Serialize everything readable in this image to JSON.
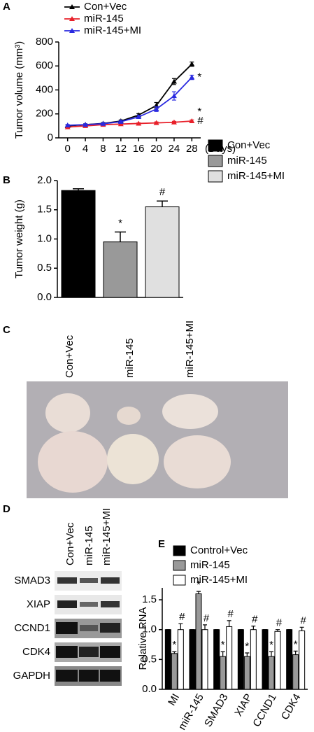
{
  "chart_data": [
    {
      "panel": "A",
      "type": "line",
      "y_label": "Tumor volume (mm³)",
      "x_label": "(Days)",
      "x": [
        0,
        4,
        8,
        12,
        16,
        20,
        24,
        28
      ],
      "xlim": [
        -2,
        30
      ],
      "xticks": [
        0,
        4,
        8,
        12,
        16,
        20,
        24,
        28
      ],
      "ylim": [
        0,
        800
      ],
      "yticks": [
        0,
        200,
        400,
        600,
        800
      ],
      "series": [
        {
          "name": "Con+Vec",
          "color": "#000000",
          "values": [
            100,
            110,
            120,
            140,
            190,
            270,
            470,
            615
          ],
          "errors": [
            8,
            8,
            8,
            10,
            12,
            25,
            25,
            18
          ]
        },
        {
          "name": "miR-145",
          "color": "#e8202a",
          "values": [
            90,
            100,
            110,
            115,
            120,
            125,
            130,
            140
          ],
          "errors": [
            5,
            5,
            5,
            5,
            6,
            8,
            8,
            10
          ]
        },
        {
          "name": "miR-145+MI",
          "color": "#2a2ae0",
          "values": [
            105,
            110,
            118,
            135,
            175,
            240,
            350,
            505
          ],
          "errors": [
            6,
            6,
            6,
            8,
            12,
            20,
            35,
            18
          ]
        }
      ],
      "annotations": [
        {
          "text": "*",
          "x": 28,
          "y": 505
        },
        {
          "text": "*",
          "x": 28,
          "y": 215
        },
        {
          "text": "#",
          "x": 28,
          "y": 140
        }
      ]
    },
    {
      "panel": "B",
      "type": "bar",
      "y_label": "Tumor weight (g)",
      "categories": [
        "Con+Vec",
        "miR-145",
        "miR-145+MI"
      ],
      "values": [
        1.83,
        0.95,
        1.55
      ],
      "errors": [
        0.03,
        0.17,
        0.1
      ],
      "colors": [
        "#000000",
        "#999999",
        "#e0e0e0"
      ],
      "annotations": [
        null,
        "*",
        "#"
      ],
      "ylim": [
        0,
        2
      ],
      "yticks": [
        {
          "value": 0,
          "label": "0.0"
        },
        0.5,
        {
          "value": 1,
          "label": "1.0"
        },
        1.5,
        {
          "value": 2,
          "label": "2.0"
        }
      ]
    },
    {
      "panel": "E",
      "type": "grouped_bar",
      "y_label": "Relative RNA",
      "categories": [
        "MI",
        "miR-145",
        "SMAD3",
        "XIAP",
        "CCND1",
        "CDK4"
      ],
      "ylim": [
        0,
        1.7
      ],
      "yticks": [
        {
          "value": 0,
          "label": "0.0"
        },
        0.5,
        {
          "value": 1,
          "label": "1.0"
        },
        1.5
      ],
      "series": [
        {
          "name": "Control+Vec",
          "color": "#000000",
          "values": [
            1,
            1,
            1,
            1,
            1,
            1
          ],
          "errors": [
            0,
            0,
            0,
            0,
            0,
            0
          ],
          "annotations": [
            null,
            null,
            null,
            null,
            null,
            null
          ]
        },
        {
          "name": "miR-145",
          "color": "#999999",
          "values": [
            0.6,
            1.6,
            0.55,
            0.55,
            0.55,
            0.58
          ],
          "errors": [
            0.03,
            0.04,
            0.08,
            0.06,
            0.08,
            0.06
          ],
          "annotations": [
            "*",
            "*",
            "*",
            "*",
            "*",
            "*"
          ]
        },
        {
          "name": "miR-145+MI",
          "color": "#ffffff",
          "values": [
            1,
            1,
            1.05,
            1,
            0.97,
            0.98
          ],
          "errors": [
            0.1,
            0.08,
            0.1,
            0.06,
            0.03,
            0.06
          ],
          "annotations": [
            "#",
            "#",
            "#",
            "#",
            "#",
            "#"
          ]
        }
      ]
    }
  ],
  "photo": {
    "panel": "C",
    "columns": [
      "Con+Vec",
      "miR-145",
      "miR-145+MI"
    ]
  },
  "blot": {
    "panel": "D",
    "columns": [
      "Con+Vec",
      "miR-145",
      "miR-145+MI"
    ],
    "rows": [
      "SMAD3",
      "XIAP",
      "CCND1",
      "CDK4",
      "GAPDH"
    ]
  }
}
